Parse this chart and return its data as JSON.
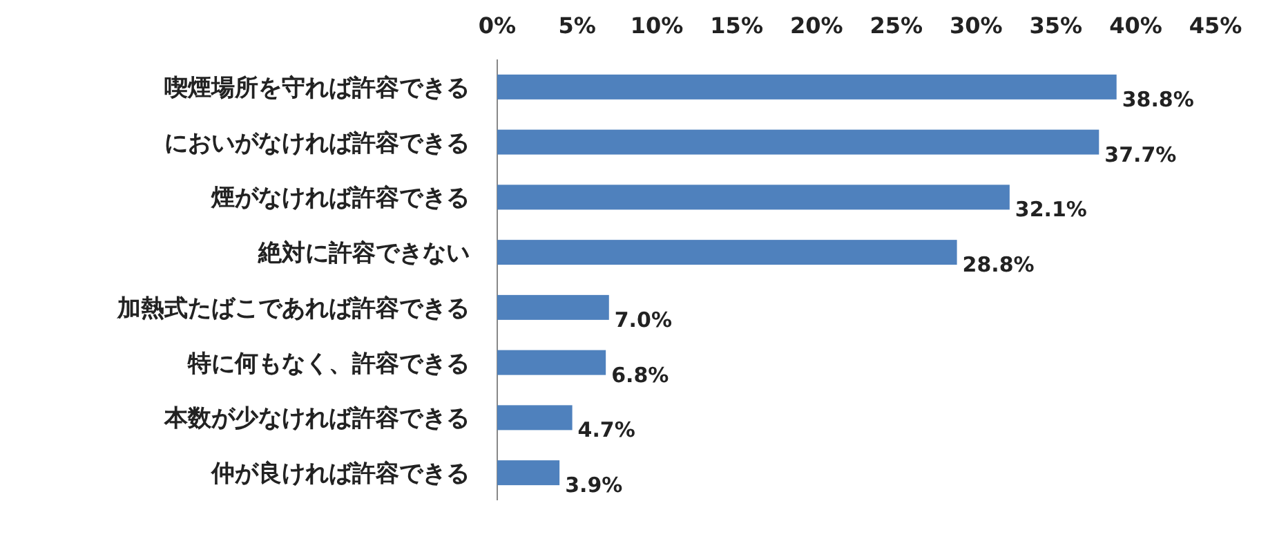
{
  "chart_data": {
    "type": "bar",
    "orientation": "horizontal",
    "categories": [
      "喫煙場所を守れば許容できる",
      "においがなければ許容できる",
      "煙がなければ許容できる",
      "絶対に許容できない",
      "加熱式たばこであれば許容できる",
      "特に何もなく、許容できる",
      "本数が少なければ許容できる",
      "仲が良ければ許容できる"
    ],
    "values": [
      38.8,
      37.7,
      32.1,
      28.8,
      7.0,
      6.8,
      4.7,
      3.9
    ],
    "value_labels": [
      "38.8%",
      "37.7%",
      "32.1%",
      "28.8%",
      "7.0%",
      "6.8%",
      "4.7%",
      "3.9%"
    ],
    "color": "#4f81bd",
    "xlim": [
      0,
      45
    ],
    "xticks": [
      {
        "value": 0,
        "label": "0%"
      },
      {
        "value": 5,
        "label": "5%"
      },
      {
        "value": 10,
        "label": "10%"
      },
      {
        "value": 15,
        "label": "15%"
      },
      {
        "value": 20,
        "label": "20%"
      },
      {
        "value": 25,
        "label": "25%"
      },
      {
        "value": 30,
        "label": "30%"
      },
      {
        "value": 35,
        "label": "35%"
      },
      {
        "value": 40,
        "label": "40%"
      },
      {
        "value": 45,
        "label": "45%"
      }
    ],
    "grid": false
  }
}
